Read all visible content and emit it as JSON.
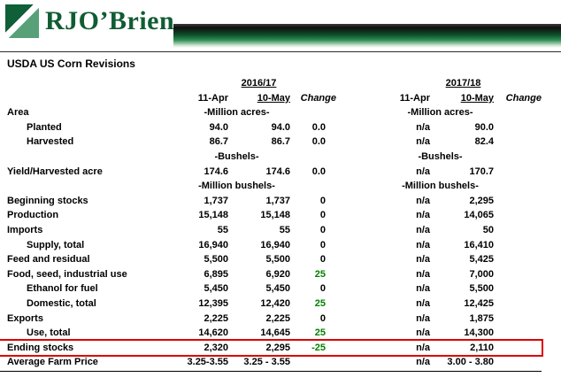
{
  "brand": {
    "name": "RJO’Brien"
  },
  "title": "USDA US Corn Revisions",
  "colors": {
    "brand_green": "#115c33",
    "change_green": "#008000",
    "highlight_red": "#dd0000"
  },
  "table": {
    "groups": [
      {
        "label": "2016/17",
        "cols": [
          "11-Apr",
          "10-May",
          "Change"
        ]
      },
      {
        "label": "2017/18",
        "cols": [
          "11-Apr",
          "10-May",
          "Change"
        ]
      }
    ],
    "rows": [
      {
        "type": "units",
        "label": "Area",
        "u1": "-Million acres-",
        "u2": "-Million acres-"
      },
      {
        "type": "data",
        "label": "Planted",
        "indent": true,
        "v": [
          "94.0",
          "94.0",
          "0.0",
          "n/a",
          "90.0",
          ""
        ]
      },
      {
        "type": "data",
        "label": "Harvested",
        "indent": true,
        "v": [
          "86.7",
          "86.7",
          "0.0",
          "n/a",
          "82.4",
          ""
        ]
      },
      {
        "type": "units",
        "label": "",
        "u1": "-Bushels-",
        "u2": "-Bushels-"
      },
      {
        "type": "data",
        "label": "Yield/Harvested acre",
        "v": [
          "174.6",
          "174.6",
          "0.0",
          "n/a",
          "170.7",
          ""
        ]
      },
      {
        "type": "units",
        "label": "",
        "u1": "-Million bushels-",
        "u2": "-Million bushels-"
      },
      {
        "type": "data",
        "label": "Beginning stocks",
        "v": [
          "1,737",
          "1,737",
          "0",
          "n/a",
          "2,295",
          ""
        ]
      },
      {
        "type": "data",
        "label": "Production",
        "v": [
          "15,148",
          "15,148",
          "0",
          "n/a",
          "14,065",
          ""
        ]
      },
      {
        "type": "data",
        "label": "Imports",
        "v": [
          "55",
          "55",
          "0",
          "n/a",
          "50",
          ""
        ]
      },
      {
        "type": "data",
        "label": "Supply, total",
        "indent": true,
        "v": [
          "16,940",
          "16,940",
          "0",
          "n/a",
          "16,410",
          ""
        ]
      },
      {
        "type": "data",
        "label": "Feed and residual",
        "v": [
          "5,500",
          "5,500",
          "0",
          "n/a",
          "5,425",
          ""
        ]
      },
      {
        "type": "data",
        "label": "Food, seed, industrial use",
        "v": [
          "6,895",
          "6,920",
          "25",
          "n/a",
          "7,000",
          ""
        ]
      },
      {
        "type": "data",
        "label": "Ethanol for fuel",
        "indent": true,
        "v": [
          "5,450",
          "5,450",
          "0",
          "n/a",
          "5,500",
          ""
        ]
      },
      {
        "type": "data",
        "label": "Domestic, total",
        "indent": true,
        "v": [
          "12,395",
          "12,420",
          "25",
          "n/a",
          "12,425",
          ""
        ]
      },
      {
        "type": "data",
        "label": "Exports",
        "v": [
          "2,225",
          "2,225",
          "0",
          "n/a",
          "1,875",
          ""
        ]
      },
      {
        "type": "data",
        "label": "Use, total",
        "indent": true,
        "v": [
          "14,620",
          "14,645",
          "25",
          "n/a",
          "14,300",
          ""
        ]
      },
      {
        "type": "data",
        "label": "Ending stocks",
        "highlight": true,
        "v": [
          "2,320",
          "2,295",
          "-25",
          "n/a",
          "2,110",
          ""
        ]
      },
      {
        "type": "data",
        "label": "Average Farm Price",
        "v": [
          "3.25-3.55",
          "3.25 - 3.55",
          "",
          "n/a",
          "3.00 - 3.80",
          ""
        ]
      }
    ]
  }
}
